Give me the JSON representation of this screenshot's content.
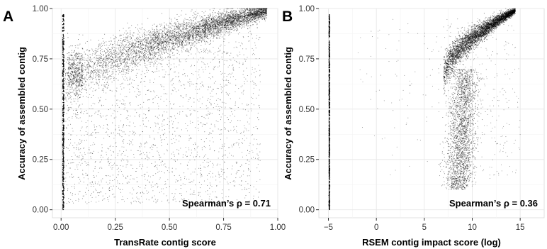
{
  "chart_data": [
    {
      "type": "scatter",
      "panel_label": "A",
      "title": "",
      "xlabel": "TransRate contig score",
      "ylabel": "Accuracy of assembled contig",
      "xlim": [
        -0.04,
        1.0
      ],
      "ylim": [
        -0.04,
        1.0
      ],
      "x_ticks": [
        0.0,
        0.25,
        0.5,
        0.75,
        1.0
      ],
      "x_tick_labels": [
        "0.00",
        "0.25",
        "0.50",
        "0.75",
        "1.00"
      ],
      "y_ticks": [
        0.0,
        0.25,
        0.5,
        0.75,
        1.0
      ],
      "y_tick_labels": [
        "0.00",
        "0.25",
        "0.50",
        "0.75",
        "1.00"
      ],
      "grid": true,
      "annotation": "Spearman’s ρ = 0.71",
      "point_color": "#000000",
      "series": [
        {
          "points_description": "dense cloud; main band from (0.0, 0.62) rising to (0.95, 0.99), sparse scatter below; vertical stack at x≈0.01",
          "x": [
            0.01,
            0.01,
            0.01,
            0.01,
            0.01,
            0.01,
            0.01,
            0.01,
            0.01,
            0.01,
            0.01,
            0.01,
            0.01,
            0.01,
            0.01,
            0.01,
            0.01,
            0.01,
            0.01,
            0.01,
            0.01,
            0.01,
            0.01,
            0.01,
            0.01,
            0.01,
            0.01,
            0.01,
            0.01,
            0.01,
            0.05,
            0.1,
            0.15,
            0.2,
            0.25,
            0.3,
            0.35,
            0.4,
            0.45,
            0.5,
            0.55,
            0.6,
            0.65,
            0.7,
            0.75,
            0.8,
            0.85,
            0.9,
            0.95
          ],
          "y": [
            0.0,
            0.05,
            0.1,
            0.15,
            0.2,
            0.25,
            0.3,
            0.35,
            0.4,
            0.45,
            0.5,
            0.55,
            0.6,
            0.65,
            0.7,
            0.75,
            0.8,
            0.85,
            0.9,
            0.95,
            0.02,
            0.07,
            0.12,
            0.17,
            0.22,
            0.27,
            0.32,
            0.37,
            0.42,
            0.47,
            0.64,
            0.67,
            0.7,
            0.73,
            0.76,
            0.78,
            0.8,
            0.83,
            0.85,
            0.87,
            0.88,
            0.9,
            0.92,
            0.93,
            0.95,
            0.96,
            0.97,
            0.98,
            0.99
          ]
        }
      ]
    },
    {
      "type": "scatter",
      "panel_label": "B",
      "title": "",
      "xlabel": "RSEM contig impact score (log)",
      "ylabel": "Accuracy of assembled contig",
      "xlim": [
        -6.0,
        17.5
      ],
      "ylim": [
        -0.04,
        1.0
      ],
      "x_ticks": [
        -5,
        0,
        5,
        10,
        15
      ],
      "x_tick_labels": [
        "−5",
        "0",
        "5",
        "10",
        "15"
      ],
      "y_ticks": [
        0.0,
        0.25,
        0.5,
        0.75,
        1.0
      ],
      "y_tick_labels": [
        "0.00",
        "0.25",
        "0.50",
        "0.75",
        "1.00"
      ],
      "grid": true,
      "annotation": "Spearman’s ρ = 0.36",
      "point_color": "#000000",
      "series": [
        {
          "points_description": "vertical stack at x≈-4.9 spanning 0–0.97; main cloud centered x≈8–12 rising to ~0.98 at x≈13–15; lower tail near x≈8–9 down to ~0.1",
          "x": [
            -4.9,
            -4.9,
            -4.9,
            -4.9,
            -4.9,
            -4.9,
            -4.9,
            -4.9,
            -4.9,
            -4.9,
            7.0,
            7.5,
            8.0,
            8.5,
            9.0,
            9.5,
            10.0,
            10.5,
            11.0,
            11.5,
            12.0,
            12.5,
            13.0,
            13.5,
            14.0,
            14.5,
            15.0,
            8.0,
            8.5,
            9.0,
            8.2,
            8.8
          ],
          "y": [
            0.0,
            0.1,
            0.2,
            0.3,
            0.4,
            0.5,
            0.6,
            0.7,
            0.8,
            0.9,
            0.66,
            0.68,
            0.72,
            0.76,
            0.8,
            0.84,
            0.88,
            0.91,
            0.93,
            0.95,
            0.96,
            0.97,
            0.98,
            0.98,
            0.99,
            0.99,
            0.99,
            0.12,
            0.25,
            0.4,
            0.55,
            0.6
          ]
        }
      ]
    }
  ]
}
